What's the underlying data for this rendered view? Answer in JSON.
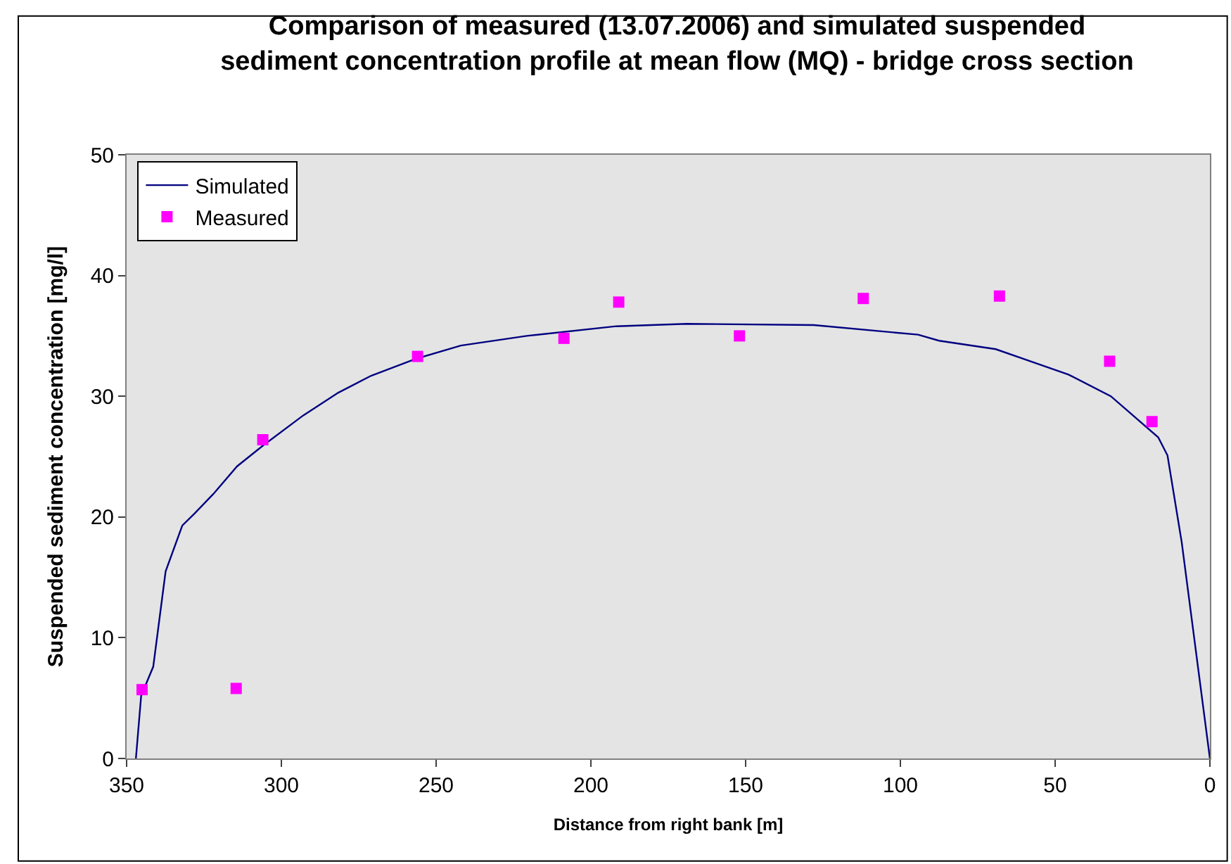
{
  "chart_data": {
    "type": "line",
    "title": "Comparison of measured (13.07.2006) and simulated suspended\nsediment concentration profile at mean flow (MQ) - bridge cross section",
    "xlabel": "Distance from right bank [m]",
    "ylabel": "Suspended sediment concentration [mg/l]",
    "xlim": [
      350,
      0
    ],
    "xticks": [
      350,
      300,
      250,
      200,
      150,
      100,
      50,
      0
    ],
    "ylim": [
      0,
      50
    ],
    "yticks": [
      0,
      10,
      20,
      30,
      40,
      50
    ],
    "grid": false,
    "legend": "top left",
    "series": [
      {
        "name": "Simulated",
        "color": "#000080",
        "marker": "none",
        "line_style": "solid",
        "x": [
          347,
          345.3,
          341.4,
          337.4,
          332,
          328,
          322,
          314.3,
          306,
          293,
          281.6,
          271,
          256.5,
          242,
          220.7,
          191.8,
          169,
          128,
          94.3,
          87.5,
          69.2,
          45.7,
          32,
          16.7,
          13.7,
          9.1,
          0
        ],
        "values": [
          0,
          5.2,
          7.6,
          15.5,
          19.3,
          20.3,
          21.9,
          24.2,
          25.9,
          28.4,
          30.3,
          31.7,
          33.1,
          34.2,
          35.0,
          35.8,
          36.0,
          35.9,
          35.1,
          34.6,
          33.9,
          31.8,
          30.0,
          26.6,
          25.1,
          17.9,
          0
        ]
      },
      {
        "name": "Measured",
        "type": "scatter",
        "color": "#ff00ff",
        "marker": "square",
        "x": [
          345,
          314.6,
          306,
          256,
          208.7,
          191,
          152,
          112,
          68,
          32.4,
          18.7
        ],
        "values": [
          5.7,
          5.8,
          26.4,
          33.3,
          34.8,
          37.8,
          35.0,
          38.1,
          38.3,
          32.9,
          27.9
        ]
      }
    ]
  }
}
